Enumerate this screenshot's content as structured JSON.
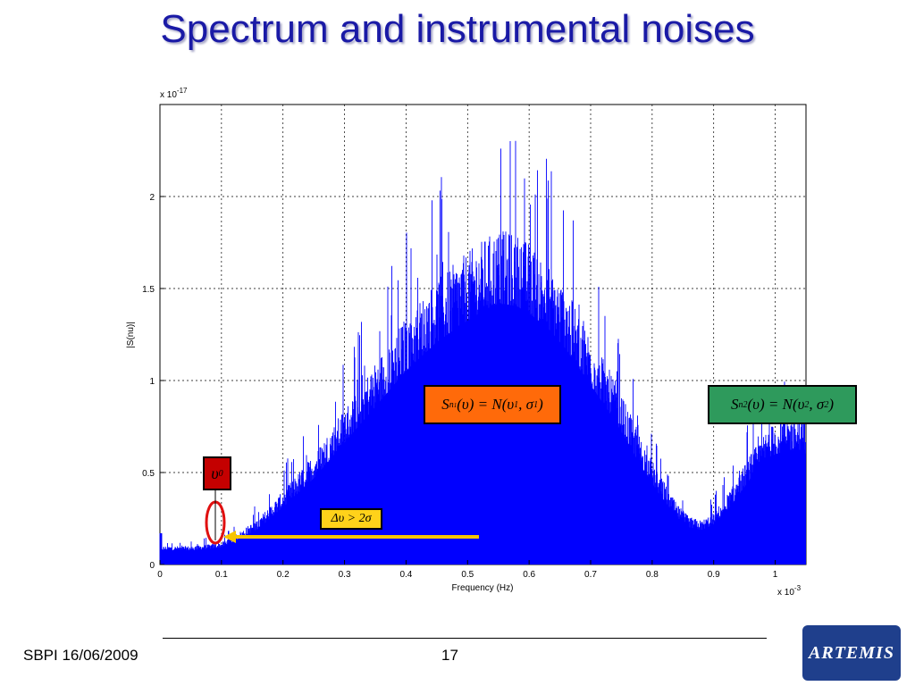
{
  "slide": {
    "title": "Spectrum and instrumental noises",
    "footer_left": "SBPI 16/06/2009",
    "page_number": "17"
  },
  "logo": {
    "text": "ARTEMIS"
  },
  "annotations": {
    "eq1": {
      "S": "S",
      "sub": "n",
      "subsub": "1",
      "rest_a": "(υ) = N(υ",
      "sub1": "1",
      "comma": ", σ",
      "sub2": "1",
      "close": ")"
    },
    "eq2": {
      "S": "S",
      "sub": "n2",
      "rest_a": "(υ) = N(υ",
      "sub1": "2",
      "comma": ", σ",
      "sub2": "2",
      "close": ")"
    },
    "nu0": {
      "sym": "υ",
      "sub": "0"
    },
    "delta": "Δυ > 2σ",
    "colors": {
      "eq1_bg": "#ff6a0a",
      "eq2_bg": "#2e9a5c",
      "nu0_bg": "#c40000",
      "delta_bg": "#ffd21a",
      "marker_circle": "#e01010",
      "arrow": "#f5c400"
    }
  },
  "chart_data": {
    "type": "area",
    "xlabel": "Frequency (Hz)",
    "ylabel": "|S(nu)|",
    "x_exponent_label": "x 10",
    "x_exponent": "-3",
    "y_exponent_label": "x 10",
    "y_exponent": "-17",
    "xlim": [
      0,
      1.05
    ],
    "ylim": [
      0,
      2.5
    ],
    "x_ticks": [
      0,
      0.1,
      0.2,
      0.3,
      0.4,
      0.5,
      0.6,
      0.7,
      0.8,
      0.9,
      1
    ],
    "x_tick_labels": [
      "0",
      "0.1",
      "0.2",
      "0.3",
      "0.4",
      "0.5",
      "0.6",
      "0.7",
      "0.8",
      "0.9",
      "1"
    ],
    "y_ticks": [
      0,
      0.5,
      1,
      1.5,
      2
    ],
    "y_tick_labels": [
      "0",
      "0.5",
      "1",
      "1.5",
      "2"
    ],
    "grid": true,
    "series_color": "#0000ff",
    "envelope": {
      "x": [
        0,
        0.02,
        0.05,
        0.08,
        0.1,
        0.13,
        0.16,
        0.2,
        0.25,
        0.3,
        0.35,
        0.4,
        0.45,
        0.5,
        0.53,
        0.55,
        0.58,
        0.6,
        0.63,
        0.66,
        0.7,
        0.74,
        0.78,
        0.81,
        0.84,
        0.86,
        0.88,
        0.9,
        0.93,
        0.96,
        0.99,
        1.02,
        1.05
      ],
      "y": [
        0.1,
        0.1,
        0.1,
        0.11,
        0.12,
        0.18,
        0.25,
        0.4,
        0.6,
        0.85,
        1.1,
        1.35,
        1.55,
        1.7,
        1.78,
        1.82,
        1.8,
        1.75,
        1.65,
        1.5,
        1.25,
        1.0,
        0.7,
        0.5,
        0.33,
        0.26,
        0.24,
        0.28,
        0.42,
        0.6,
        0.75,
        0.8,
        0.8
      ]
    }
  }
}
